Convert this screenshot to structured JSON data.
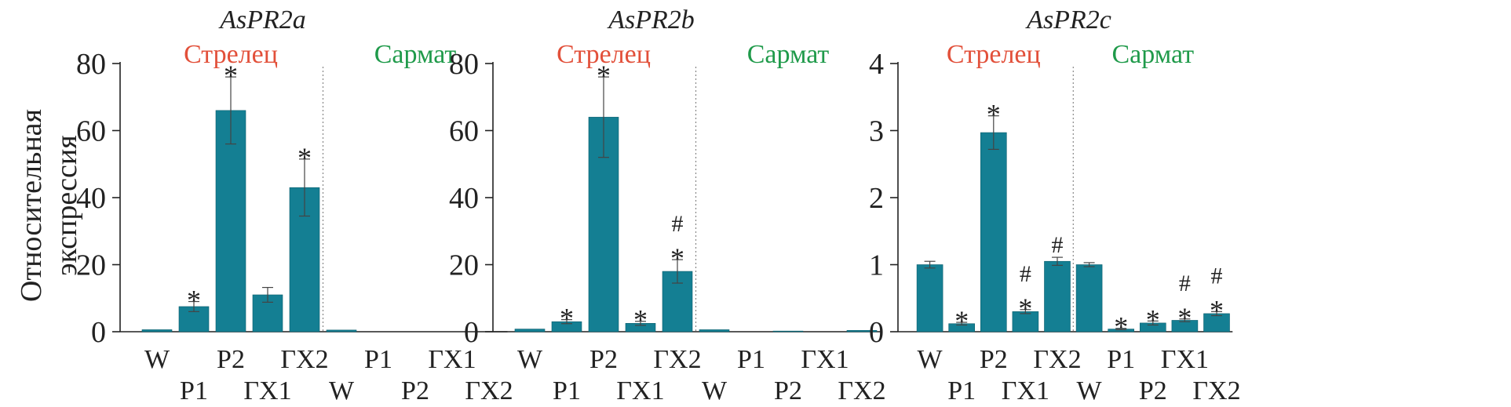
{
  "ylabel_line1": "Относительная",
  "ylabel_line2": "экспрессия",
  "group_labels": [
    "Стрелец",
    "Сармат"
  ],
  "group_colors": [
    "#e2503a",
    "#1f9a4a"
  ],
  "bar_color": "#147f93",
  "chart_data": [
    {
      "type": "bar",
      "title": "AsPR2a",
      "ylabel": "Относительная экспрессия",
      "ylim": [
        0,
        80
      ],
      "yticks": [
        0,
        20,
        40,
        60,
        80
      ],
      "categories": [
        "W",
        "P1",
        "P2",
        "ГХ1",
        "ГХ2",
        "W",
        "P1",
        "P2",
        "ГХ1",
        "ГХ2"
      ],
      "groups": [
        "Стрелец",
        "Стрелец",
        "Стрелец",
        "Стрелец",
        "Стрелец",
        "Сармат",
        "Сармат",
        "Сармат",
        "Сармат",
        "Сармат"
      ],
      "values": [
        0.6,
        7.5,
        66,
        11,
        43,
        0.5,
        0,
        0,
        0,
        0
      ],
      "errors": [
        0,
        1.5,
        10,
        2.2,
        8.5,
        0,
        0,
        0,
        0,
        0
      ],
      "annotations": [
        "",
        "*",
        "*",
        "",
        "*",
        "",
        "",
        "",
        "",
        ""
      ]
    },
    {
      "type": "bar",
      "title": "AsPR2b",
      "ylim": [
        0,
        80
      ],
      "yticks": [
        0,
        20,
        40,
        60,
        80
      ],
      "categories": [
        "W",
        "P1",
        "P2",
        "ГХ1",
        "ГХ2",
        "W",
        "P1",
        "P2",
        "ГХ1",
        "ГХ2"
      ],
      "groups": [
        "Стрелец",
        "Стрелец",
        "Стрелец",
        "Стрелец",
        "Стрелец",
        "Сармат",
        "Сармат",
        "Сармат",
        "Сармат",
        "Сармат"
      ],
      "values": [
        0.8,
        3,
        64,
        2.5,
        18,
        0.6,
        0,
        0.2,
        0,
        0.4
      ],
      "errors": [
        0,
        0.6,
        12,
        0.6,
        3.5,
        0,
        0,
        0,
        0,
        0
      ],
      "annotations": [
        "",
        "*",
        "*",
        "*",
        "*\n#",
        "",
        "",
        "",
        "",
        ""
      ]
    },
    {
      "type": "bar",
      "title": "AsPR2c",
      "ylim": [
        0,
        4
      ],
      "yticks": [
        0,
        1,
        2,
        3,
        4
      ],
      "categories": [
        "W",
        "P1",
        "P2",
        "ГХ1",
        "ГХ2",
        "W",
        "P1",
        "P2",
        "ГХ1",
        "ГХ2"
      ],
      "groups": [
        "Стрелец",
        "Стрелец",
        "Стрелец",
        "Стрелец",
        "Стрелец",
        "Сармат",
        "Сармат",
        "Сармат",
        "Сармат",
        "Сармат"
      ],
      "values": [
        1.0,
        0.12,
        2.97,
        0.3,
        1.05,
        1.0,
        0.04,
        0.13,
        0.17,
        0.27
      ],
      "errors": [
        0.05,
        0.02,
        0.25,
        0.03,
        0.06,
        0.03,
        0.01,
        0.03,
        0.02,
        0.03
      ],
      "annotations": [
        "",
        "*",
        "*",
        "*\n#",
        "#",
        "",
        "*",
        "*",
        "*\n#",
        "*\n#"
      ]
    }
  ]
}
